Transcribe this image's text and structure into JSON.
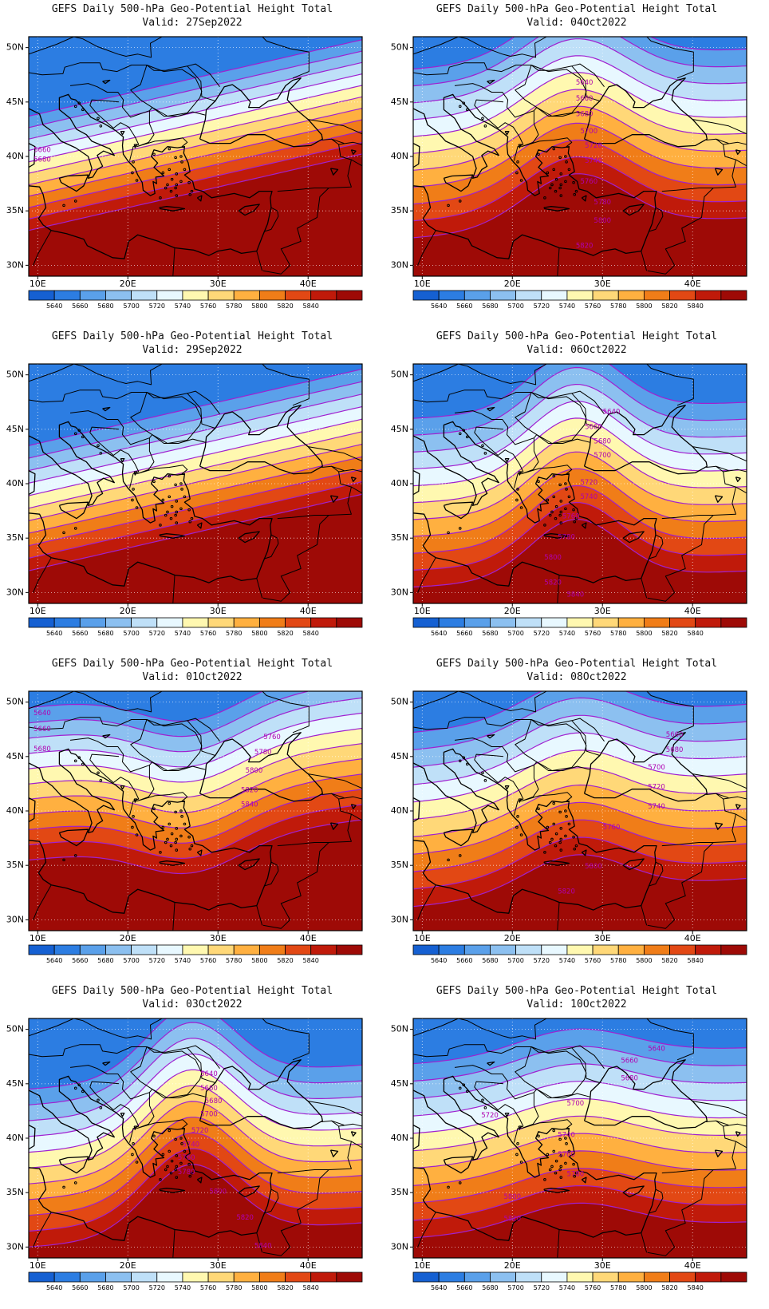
{
  "panel_title": "GEFS Daily 500-hPa Geo-Potential Height Total",
  "valid_prefix": "Valid:",
  "lat_labels": [
    "30N",
    "35N",
    "40N",
    "45N",
    "50N"
  ],
  "lon_labels": [
    "10E",
    "20E",
    "30E",
    "40E"
  ],
  "colorbar": {
    "levels": [
      "5640",
      "5660",
      "5680",
      "5700",
      "5720",
      "5740",
      "5760",
      "5780",
      "5800",
      "5820",
      "5840"
    ],
    "colors": [
      "#1560d2",
      "#2c7de2",
      "#5aa0ea",
      "#8cc0f0",
      "#bfe0f8",
      "#e8f8ff",
      "#fff8b0",
      "#ffd878",
      "#ffb040",
      "#f07d18",
      "#e24814",
      "#c01a0a",
      "#9e0a06"
    ]
  },
  "contour_color": "#a020d0",
  "panels": [
    {
      "valid": "27Sep2022",
      "labels": [
        "5660",
        "5680"
      ]
    },
    {
      "valid": "04Oct2022",
      "labels": [
        "5640",
        "5660",
        "5680",
        "5700",
        "5720",
        "5740",
        "5760",
        "5780",
        "5800",
        "5820"
      ]
    },
    {
      "valid": "29Sep2022",
      "labels": []
    },
    {
      "valid": "06Oct2022",
      "labels": [
        "5640",
        "5660",
        "5680",
        "5700",
        "5720",
        "5740",
        "5760",
        "5780",
        "5800",
        "5820",
        "5840"
      ]
    },
    {
      "valid": "01Oct2022",
      "labels": [
        "5640",
        "5660",
        "5680",
        "5760",
        "5780",
        "5800",
        "5820",
        "5840"
      ]
    },
    {
      "valid": "08Oct2022",
      "labels": [
        "5660",
        "5680",
        "5700",
        "5720",
        "5740",
        "5760",
        "5800",
        "5820"
      ]
    },
    {
      "valid": "03Oct2022",
      "labels": [
        "5640",
        "5660",
        "5680",
        "5700",
        "5720",
        "5740",
        "5760",
        "5780",
        "5800",
        "5820",
        "5840"
      ]
    },
    {
      "valid": "10Oct2022",
      "labels": [
        "5640",
        "5660",
        "5680",
        "5700",
        "5720",
        "5740",
        "5760",
        "5780",
        "5800",
        "5820"
      ]
    }
  ]
}
